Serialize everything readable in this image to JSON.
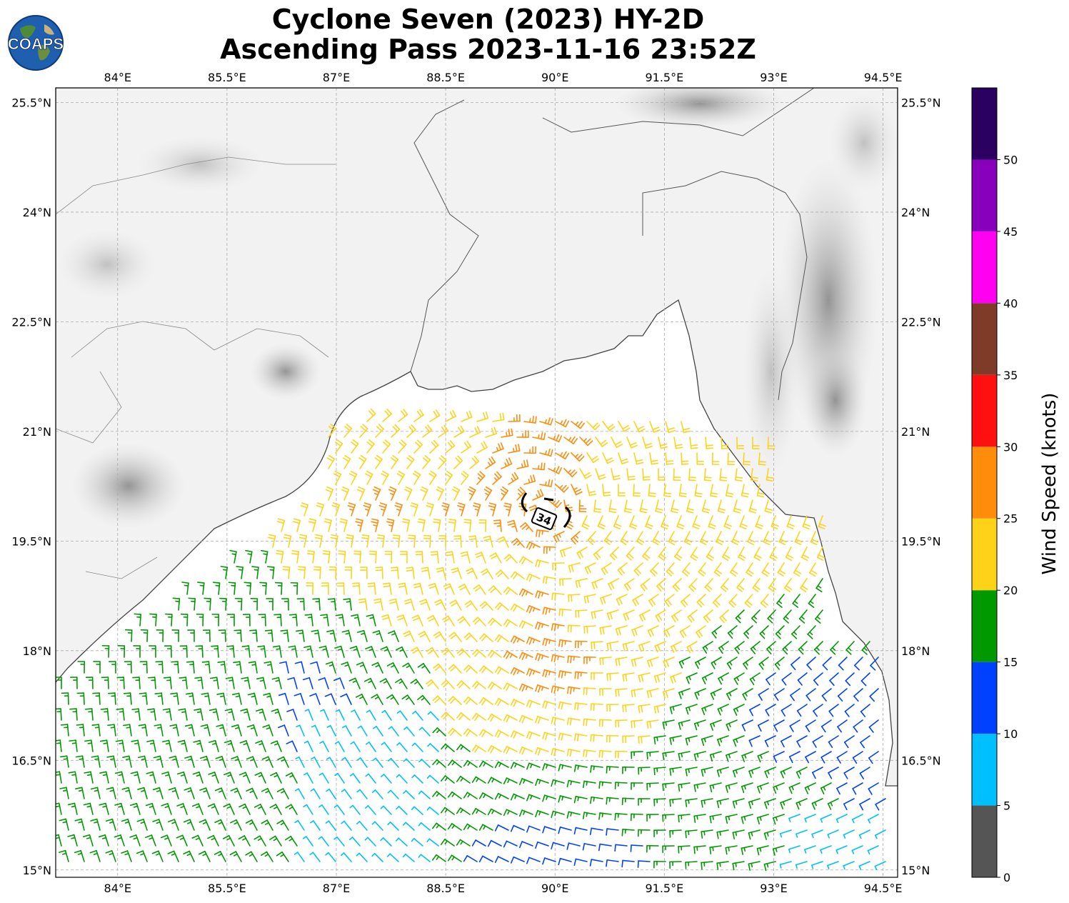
{
  "title": {
    "line1": "Cyclone Seven (2023) HY-2D",
    "line2": "Ascending Pass 2023-11-16 23:52Z"
  },
  "logo": {
    "text": "COAPS",
    "icon": "globe-logo-icon"
  },
  "axes": {
    "lon_labels": [
      "84°E",
      "85.5°E",
      "87°E",
      "88.5°E",
      "90°E",
      "91.5°E",
      "93°E",
      "94.5°E"
    ],
    "lat_labels": [
      "25.5°N",
      "24°N",
      "22.5°N",
      "21°N",
      "19.5°N",
      "18°N",
      "16.5°N",
      "15°N"
    ],
    "lon_range": [
      83.15,
      94.7
    ],
    "lat_range": [
      14.9,
      25.7
    ],
    "grid": true
  },
  "center_marker": {
    "label": "34"
  },
  "colorbar": {
    "title": "Wind Speed (knots)",
    "tick_labels": [
      "0",
      "5",
      "10",
      "15",
      "20",
      "25",
      "30",
      "35",
      "40",
      "45",
      "50"
    ],
    "bins": [
      {
        "from": 0,
        "to": 5,
        "color": "#555555"
      },
      {
        "from": 5,
        "to": 10,
        "color": "#00bfff"
      },
      {
        "from": 10,
        "to": 15,
        "color": "#0040ff"
      },
      {
        "from": 15,
        "to": 20,
        "color": "#009900"
      },
      {
        "from": 20,
        "to": 25,
        "color": "#ffd21a"
      },
      {
        "from": 25,
        "to": 30,
        "color": "#ff8c0a"
      },
      {
        "from": 30,
        "to": 35,
        "color": "#ff1010"
      },
      {
        "from": 35,
        "to": 40,
        "color": "#7f3b28"
      },
      {
        "from": 40,
        "to": 45,
        "color": "#ff00f0"
      },
      {
        "from": 45,
        "to": 50,
        "color": "#8800bb"
      },
      {
        "from": 50,
        "to": 55,
        "color": "#2a0060"
      }
    ]
  },
  "wind_field": {
    "center_lon": 89.85,
    "center_lat": 19.9
  }
}
